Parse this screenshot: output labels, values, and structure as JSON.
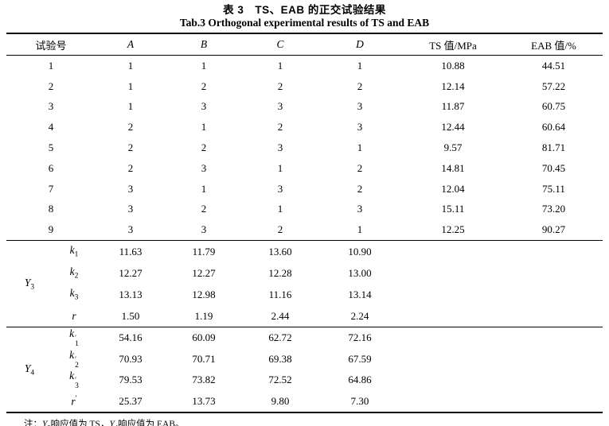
{
  "title": {
    "zh": "表 3　TS、EAB 的正交试验结果",
    "en": "Tab.3 Orthogonal experimental results of TS and EAB"
  },
  "table": {
    "columns": [
      "试验号",
      "A",
      "B",
      "C",
      "D",
      "TS 值/MPa",
      "EAB 值/%"
    ],
    "runs": [
      [
        "1",
        "1",
        "1",
        "1",
        "1",
        "10.88",
        "44.51"
      ],
      [
        "2",
        "1",
        "2",
        "2",
        "2",
        "12.14",
        "57.22"
      ],
      [
        "3",
        "1",
        "3",
        "3",
        "3",
        "11.87",
        "60.75"
      ],
      [
        "4",
        "2",
        "1",
        "2",
        "3",
        "12.44",
        "60.64"
      ],
      [
        "5",
        "2",
        "2",
        "3",
        "1",
        "9.57",
        "81.71"
      ],
      [
        "6",
        "2",
        "3",
        "1",
        "2",
        "14.81",
        "70.45"
      ],
      [
        "7",
        "3",
        "1",
        "3",
        "2",
        "12.04",
        "75.11"
      ],
      [
        "8",
        "3",
        "2",
        "1",
        "3",
        "15.11",
        "73.20"
      ],
      [
        "9",
        "3",
        "3",
        "2",
        "1",
        "12.25",
        "90.27"
      ]
    ],
    "sections": [
      {
        "group": {
          "base": "Y",
          "sub": "3"
        },
        "rows": [
          {
            "label": {
              "base": "k",
              "sub": "1"
            },
            "values": [
              "11.63",
              "11.79",
              "13.60",
              "10.90"
            ]
          },
          {
            "label": {
              "base": "k",
              "sub": "2"
            },
            "values": [
              "12.27",
              "12.27",
              "12.28",
              "13.00"
            ]
          },
          {
            "label": {
              "base": "k",
              "sub": "3"
            },
            "values": [
              "13.13",
              "12.98",
              "11.16",
              "13.14"
            ]
          },
          {
            "label": {
              "base": "r"
            },
            "values": [
              "1.50",
              "1.19",
              "2.44",
              "2.24"
            ]
          }
        ]
      },
      {
        "group": {
          "base": "Y",
          "sub": "4"
        },
        "rows": [
          {
            "label": {
              "base": "k",
              "sub": "1",
              "prime": "′"
            },
            "values": [
              "54.16",
              "60.09",
              "62.72",
              "72.16"
            ]
          },
          {
            "label": {
              "base": "k",
              "sub": "2",
              "prime": "′"
            },
            "values": [
              "70.93",
              "70.71",
              "69.38",
              "67.59"
            ]
          },
          {
            "label": {
              "base": "k",
              "sub": "3",
              "prime": "′"
            },
            "values": [
              "79.53",
              "73.82",
              "72.52",
              "64.86"
            ]
          },
          {
            "label": {
              "base": "r",
              "prime": "′"
            },
            "values": [
              "25.37",
              "13.73",
              "9.80",
              "7.30"
            ]
          }
        ]
      }
    ]
  },
  "note": {
    "parts": [
      {
        "text": "注："
      },
      {
        "text": "Y",
        "italic": true
      },
      {
        "text": "3",
        "sub": true
      },
      {
        "text": "响应值为 TS，"
      },
      {
        "text": "Y",
        "italic": true
      },
      {
        "text": "4",
        "sub": true
      },
      {
        "text": "响应值为 EAB。"
      }
    ]
  }
}
